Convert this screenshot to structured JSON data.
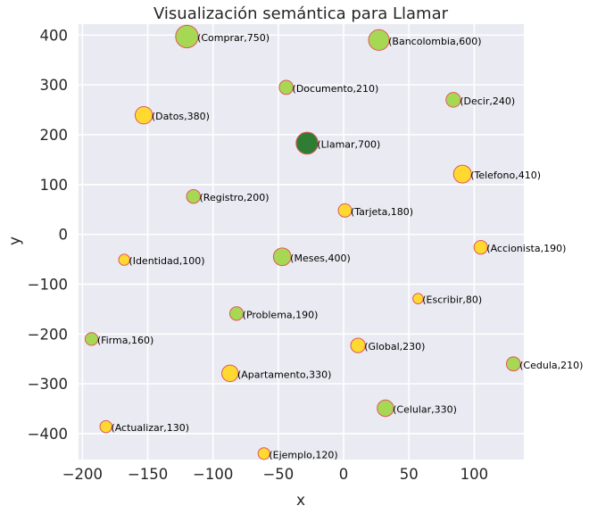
{
  "chart_data": {
    "type": "scatter",
    "title": "Visualización semántica para Llamar",
    "xlabel": "x",
    "ylabel": "y",
    "xlim": [
      -203,
      138
    ],
    "ylim": [
      -452,
      422
    ],
    "xticks": [
      -200,
      -150,
      -100,
      -50,
      0,
      50,
      100
    ],
    "yticks": [
      400,
      300,
      200,
      100,
      0,
      -100,
      -200,
      -300,
      -400
    ],
    "xtick_labels": [
      "−200",
      "−150",
      "−100",
      "−50",
      "0",
      "50",
      "100"
    ],
    "ytick_labels": [
      "400",
      "300",
      "200",
      "100",
      "0",
      "−100",
      "−200",
      "−300",
      "−400"
    ],
    "grid": true,
    "colors": {
      "background": "#eaeaf2",
      "grid": "#ffffff",
      "yellow": "#ffd92f",
      "green": "#a6d854",
      "target": "#2e7d32",
      "edge": "#e15759"
    },
    "points": [
      {
        "word": "Comprar",
        "value": 750,
        "x": -120,
        "y": 397,
        "color": "green",
        "label": "(Comprar,750)"
      },
      {
        "word": "Bancolombia",
        "value": 600,
        "x": 27,
        "y": 390,
        "color": "green",
        "label": "(Bancolombia,600)"
      },
      {
        "word": "Documento",
        "value": 210,
        "x": -44,
        "y": 295,
        "color": "green",
        "label": "(Documento,210)"
      },
      {
        "word": "Decir",
        "value": 240,
        "x": 84,
        "y": 270,
        "color": "green",
        "label": "(Decir,240)"
      },
      {
        "word": "Datos",
        "value": 380,
        "x": -153,
        "y": 239,
        "color": "yellow",
        "label": "(Datos,380)"
      },
      {
        "word": "Llamar",
        "value": 700,
        "x": -28,
        "y": 183,
        "color": "target",
        "label": "(Llamar,700)"
      },
      {
        "word": "Telefono",
        "value": 410,
        "x": 91,
        "y": 121,
        "color": "yellow",
        "label": "(Telefono,410)"
      },
      {
        "word": "Registro",
        "value": 200,
        "x": -115,
        "y": 76,
        "color": "green",
        "label": "(Registro,200)"
      },
      {
        "word": "Tarjeta",
        "value": 180,
        "x": 1,
        "y": 48,
        "color": "yellow",
        "label": "(Tarjeta,180)"
      },
      {
        "word": "Accionista",
        "value": 190,
        "x": 105,
        "y": -26,
        "color": "yellow",
        "label": "(Accionista,190)"
      },
      {
        "word": "Identidad",
        "value": 100,
        "x": -168,
        "y": -51,
        "color": "yellow",
        "label": "(Identidad,100)"
      },
      {
        "word": "Meses",
        "value": 400,
        "x": -47,
        "y": -45,
        "color": "green",
        "label": "(Meses,400)"
      },
      {
        "word": "Escribir",
        "value": 80,
        "x": 57,
        "y": -129,
        "color": "yellow",
        "label": "(Escribir,80)"
      },
      {
        "word": "Problema",
        "value": 190,
        "x": -82,
        "y": -159,
        "color": "green",
        "label": "(Problema,190)"
      },
      {
        "word": "Firma",
        "value": 160,
        "x": -193,
        "y": -210,
        "color": "green",
        "label": "(Firma,160)"
      },
      {
        "word": "Global",
        "value": 230,
        "x": 11,
        "y": -223,
        "color": "yellow",
        "label": "(Global,230)"
      },
      {
        "word": "Cedula",
        "value": 210,
        "x": 130,
        "y": -260,
        "color": "green",
        "label": "(Cedula,210)"
      },
      {
        "word": "Apartamento",
        "value": 330,
        "x": -87,
        "y": -279,
        "color": "yellow",
        "label": "(Apartamento,330)"
      },
      {
        "word": "Celular",
        "value": 330,
        "x": 32,
        "y": -349,
        "color": "green",
        "label": "(Celular,330)"
      },
      {
        "word": "Actualizar",
        "value": 130,
        "x": -182,
        "y": -386,
        "color": "yellow",
        "label": "(Actualizar,130)"
      },
      {
        "word": "Ejemplo",
        "value": 120,
        "x": -61,
        "y": -440,
        "color": "yellow",
        "label": "(Ejemplo,120)"
      }
    ]
  }
}
